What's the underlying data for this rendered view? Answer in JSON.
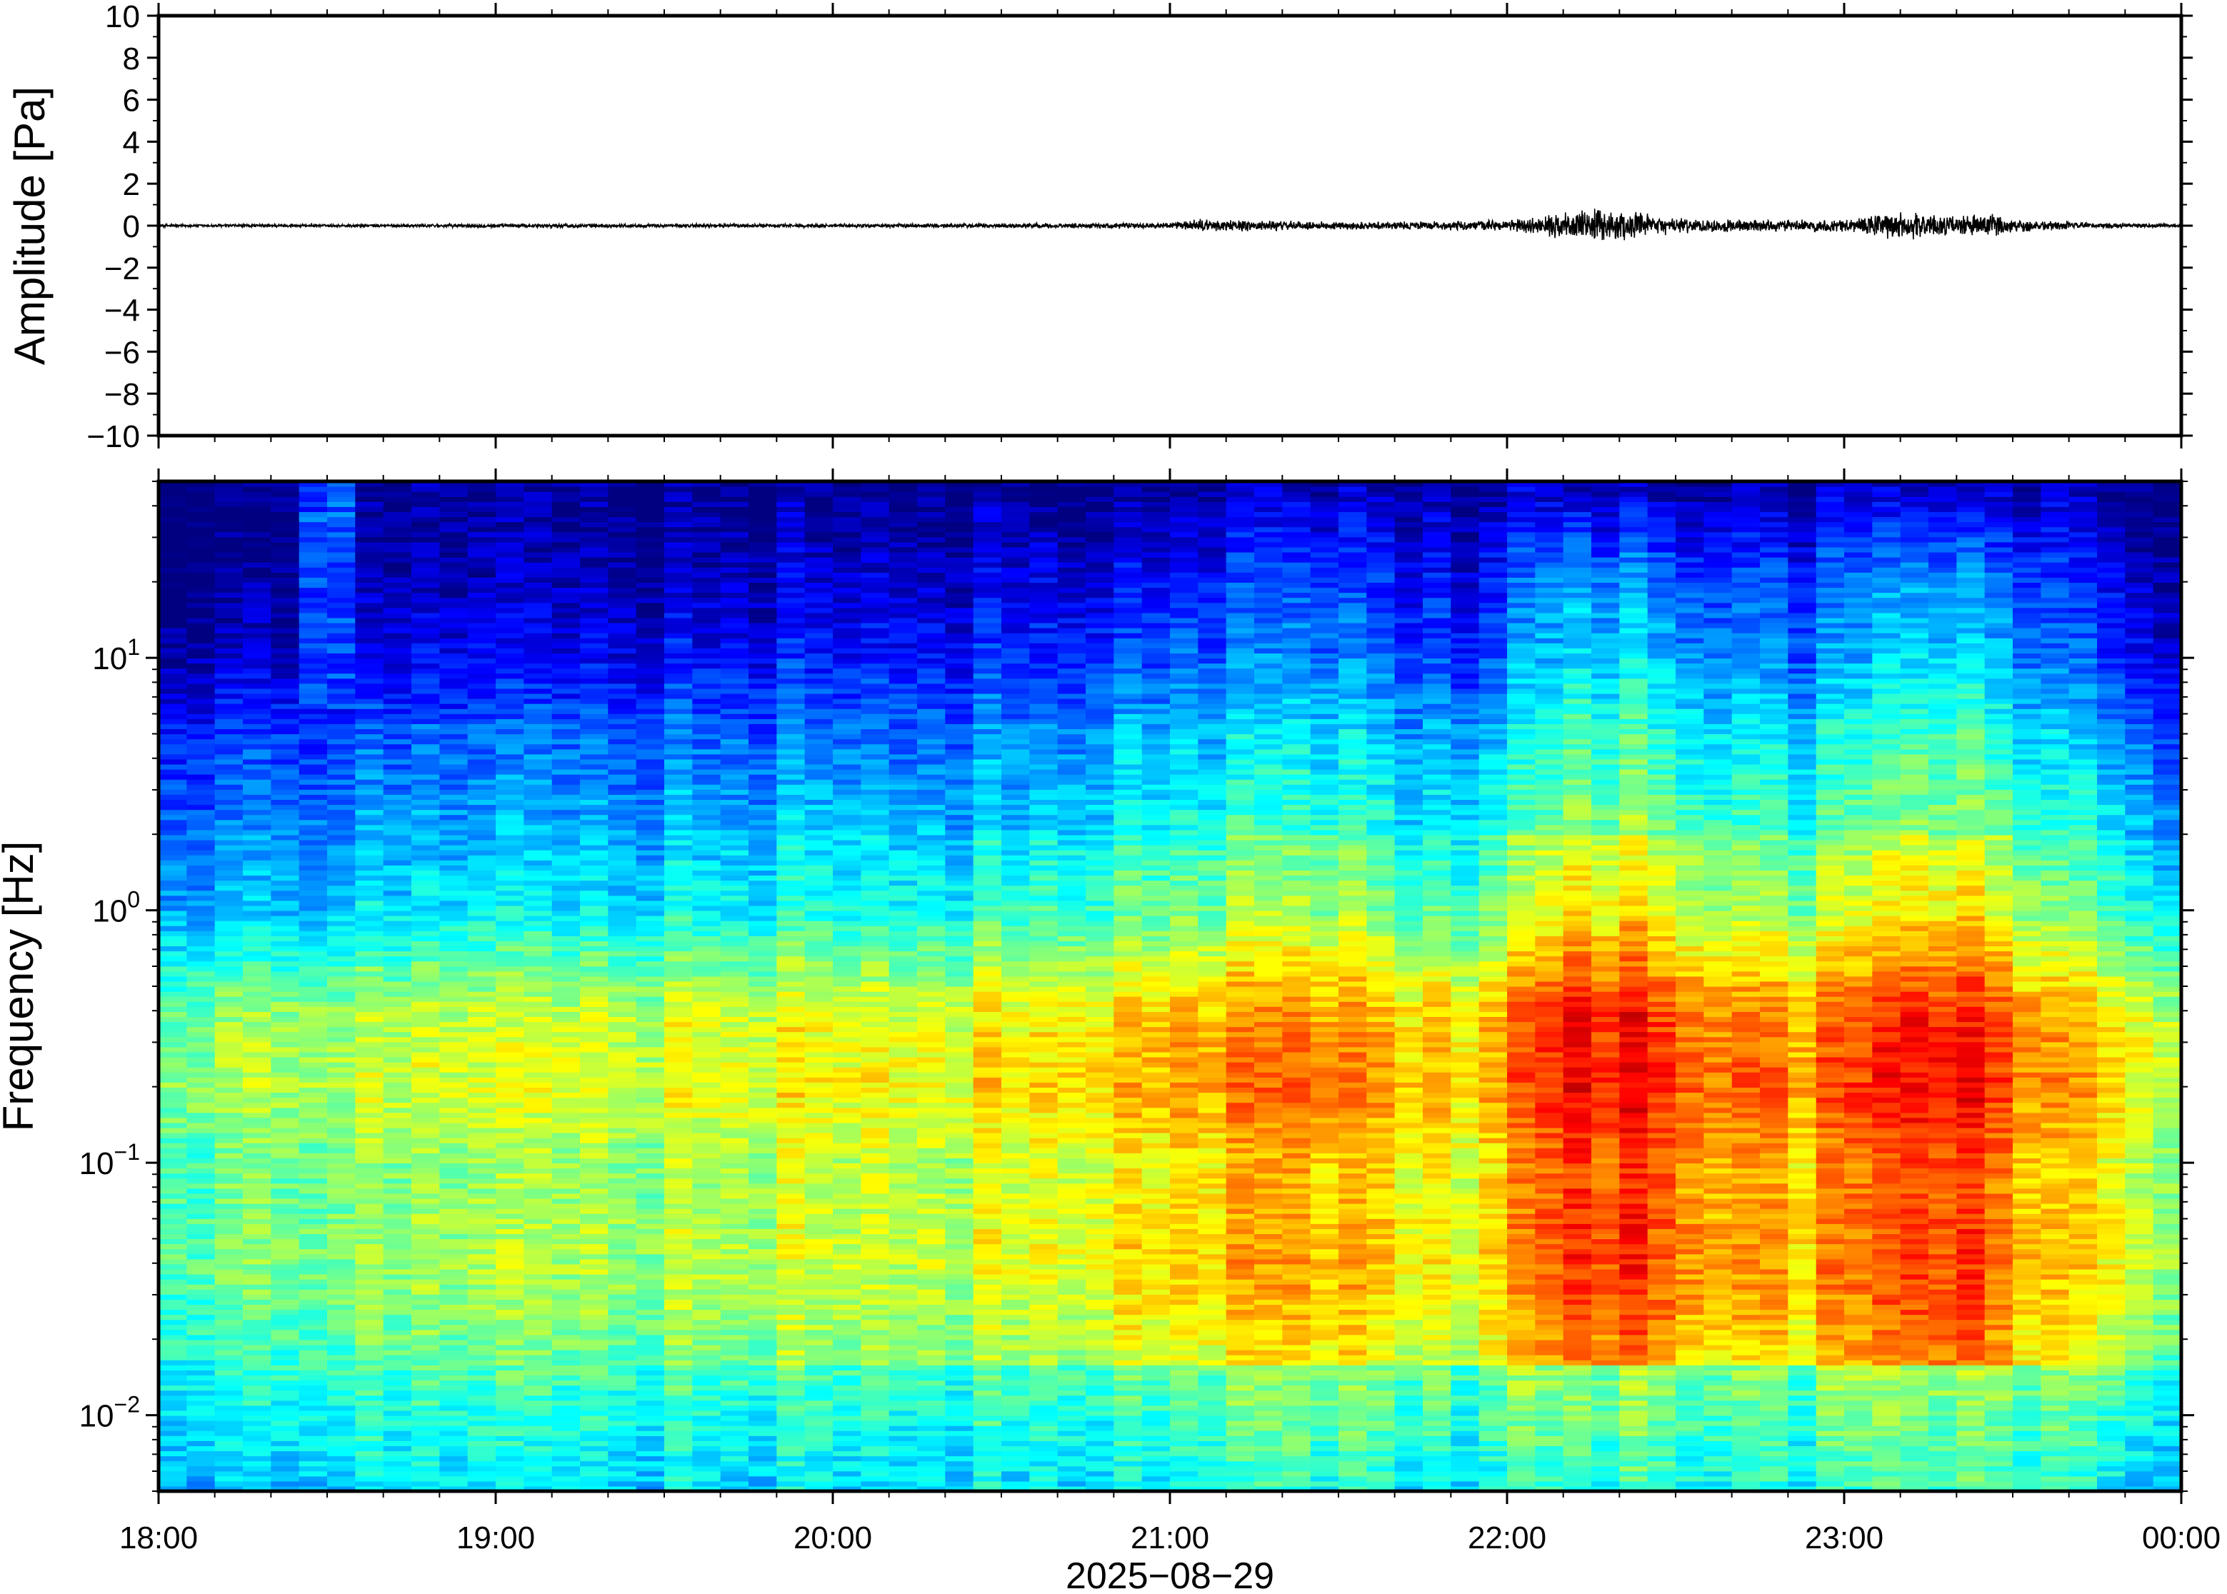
{
  "chart_data": [
    {
      "type": "line",
      "ylabel": "Amplitude [Pa]",
      "ylim": [
        -10,
        10
      ],
      "yticks": [
        10,
        8,
        6,
        4,
        2,
        0,
        -2,
        -4,
        -6,
        -8,
        -10
      ],
      "ytick_labels": [
        "10",
        "8",
        "6",
        "4",
        "2",
        "0",
        "−2",
        "−4",
        "−6",
        "−8",
        "−10"
      ],
      "xlim": [
        "2025-08-29T18:00",
        "2025-08-30T00:00"
      ],
      "grid": false,
      "series_color": "#000000",
      "envelope": {
        "x": [
          "18:00",
          "18:30",
          "19:00",
          "19:30",
          "20:00",
          "20:30",
          "21:00",
          "21:05",
          "21:30",
          "21:55",
          "22:05",
          "22:10",
          "22:15",
          "22:20",
          "22:25",
          "22:30",
          "22:40",
          "22:50",
          "23:00",
          "23:05",
          "23:10",
          "23:15",
          "23:20",
          "23:25",
          "23:30",
          "23:40",
          "23:50",
          "00:00"
        ],
        "amplitude": [
          0.08,
          0.08,
          0.1,
          0.1,
          0.1,
          0.12,
          0.15,
          0.35,
          0.2,
          0.25,
          0.4,
          0.7,
          0.9,
          0.8,
          0.6,
          0.4,
          0.35,
          0.3,
          0.35,
          0.6,
          0.8,
          0.6,
          0.5,
          0.7,
          0.4,
          0.2,
          0.12,
          0.1
        ]
      }
    },
    {
      "type": "heatmap",
      "ylabel": "Frequency [Hz]",
      "xlabel": "2025−08−29",
      "yscale": "log",
      "ylim": [
        0.005,
        50
      ],
      "ytick_values": [
        0.01,
        0.1,
        1,
        10
      ],
      "ytick_labels": [
        {
          "base": "10",
          "exp": "−2"
        },
        {
          "base": "10",
          "exp": "−1"
        },
        {
          "base": "10",
          "exp": "0"
        },
        {
          "base": "10",
          "exp": "1"
        }
      ],
      "xlim": [
        "18:00",
        "00:00"
      ],
      "xtick_labels": [
        "18:00",
        "19:00",
        "20:00",
        "21:00",
        "22:00",
        "23:00",
        "00:00"
      ],
      "colormap": "jet",
      "profile": {
        "log10_freq": [
          -2.3,
          -2.0,
          -1.7,
          -1.4,
          -1.0,
          -0.7,
          -0.4,
          0.0,
          0.4,
          0.7,
          1.0,
          1.3,
          1.7
        ],
        "level": [
          0.32,
          0.38,
          0.45,
          0.5,
          0.48,
          0.55,
          0.52,
          0.32,
          0.24,
          0.18,
          0.08,
          0.02,
          0.0
        ]
      },
      "activity": {
        "time_hours": [
          0.0,
          0.5,
          1.0,
          1.5,
          2.0,
          2.5,
          3.0,
          3.5,
          3.8,
          4.0,
          4.2,
          4.4,
          4.6,
          4.8,
          5.0,
          5.2,
          5.4,
          5.6,
          5.8,
          6.0
        ],
        "boost": [
          0.0,
          0.0,
          0.02,
          0.05,
          0.08,
          0.1,
          0.18,
          0.18,
          0.12,
          0.18,
          0.34,
          0.34,
          0.24,
          0.2,
          0.22,
          0.32,
          0.3,
          0.15,
          0.12,
          0.06
        ]
      }
    }
  ]
}
